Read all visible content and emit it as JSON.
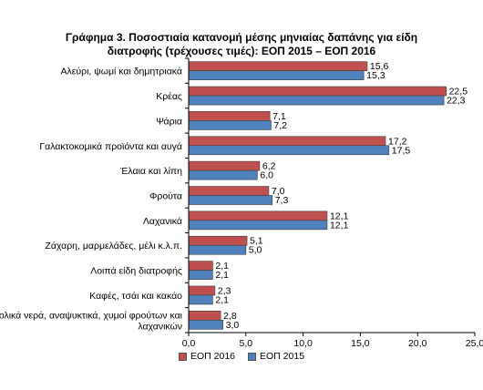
{
  "chart_data": {
    "type": "bar",
    "orientation": "horizontal",
    "title_line1": "Γράφημα 3.  Ποσοστιαία κατανομή μέσης μηνιαίας δαπάνης για είδη",
    "title_line2": "διατροφής (τρέχουσες τιμές): ΕΟΠ 2015 – ΕΟΠ 2016",
    "categories": [
      "Αλεύρι, ψωμί και δημητριακά",
      "Κρέας",
      "Ψάρια",
      "Γαλακτοκομικά προϊόντα και αυγά",
      "Έλαια και λίπη",
      "Φρούτα",
      "Λαχανικά",
      "Ζάχαρη, μαρμελάδες, μέλι κ.λ.π.",
      "Λοιπά είδη διατροφής",
      "Καφές, τσάι και κακάο",
      "Αλκοολικά νερά, αναψυκτικά, χυμοί φρούτων και λαχανικών"
    ],
    "category_lines": [
      [
        "Αλεύρι, ψωμί και δημητριακά"
      ],
      [
        "Κρέας"
      ],
      [
        "Ψάρια"
      ],
      [
        "Γαλακτοκομικά προϊόντα και αυγά"
      ],
      [
        "Έλαια και λίπη"
      ],
      [
        "Φρούτα"
      ],
      [
        "Λαχανικά"
      ],
      [
        "Ζάχαρη, μαρμελάδες, μέλι κ.λ.π."
      ],
      [
        "Λοιπά είδη διατροφής"
      ],
      [
        "Καφές, τσάι και κακάο"
      ],
      [
        "Αλκοολικά νερά, αναψυκτικά, χυμοί φρούτων και",
        "λαχανικών"
      ]
    ],
    "series": [
      {
        "name": "ΕΟΠ 2016",
        "color": "#c0504d",
        "values": [
          15.6,
          22.5,
          7.1,
          17.2,
          6.2,
          7.0,
          12.1,
          5.1,
          2.1,
          2.3,
          2.8
        ],
        "labels": [
          "15,6",
          "22,5",
          "7,1",
          "17,2",
          "6,2",
          "7,0",
          "12,1",
          "5,1",
          "2,1",
          "2,3",
          "2,8"
        ]
      },
      {
        "name": "ΕΟΠ 2015",
        "color": "#4f81bd",
        "values": [
          15.3,
          22.3,
          7.2,
          17.5,
          6.0,
          7.3,
          12.1,
          5.0,
          2.1,
          2.1,
          3.0
        ],
        "labels": [
          "15,3",
          "22,3",
          "7,2",
          "17,5",
          "6,0",
          "7,3",
          "12,1",
          "5,0",
          "2,1",
          "2,1",
          "3,0"
        ]
      }
    ],
    "xlim": [
      0,
      25
    ],
    "xticks": [
      0,
      5,
      10,
      15,
      20,
      25
    ],
    "xtick_labels": [
      "0,0",
      "5,0",
      "10,0",
      "15,0",
      "20,0",
      "25,0"
    ],
    "grid": false,
    "legend_position": "bottom"
  }
}
